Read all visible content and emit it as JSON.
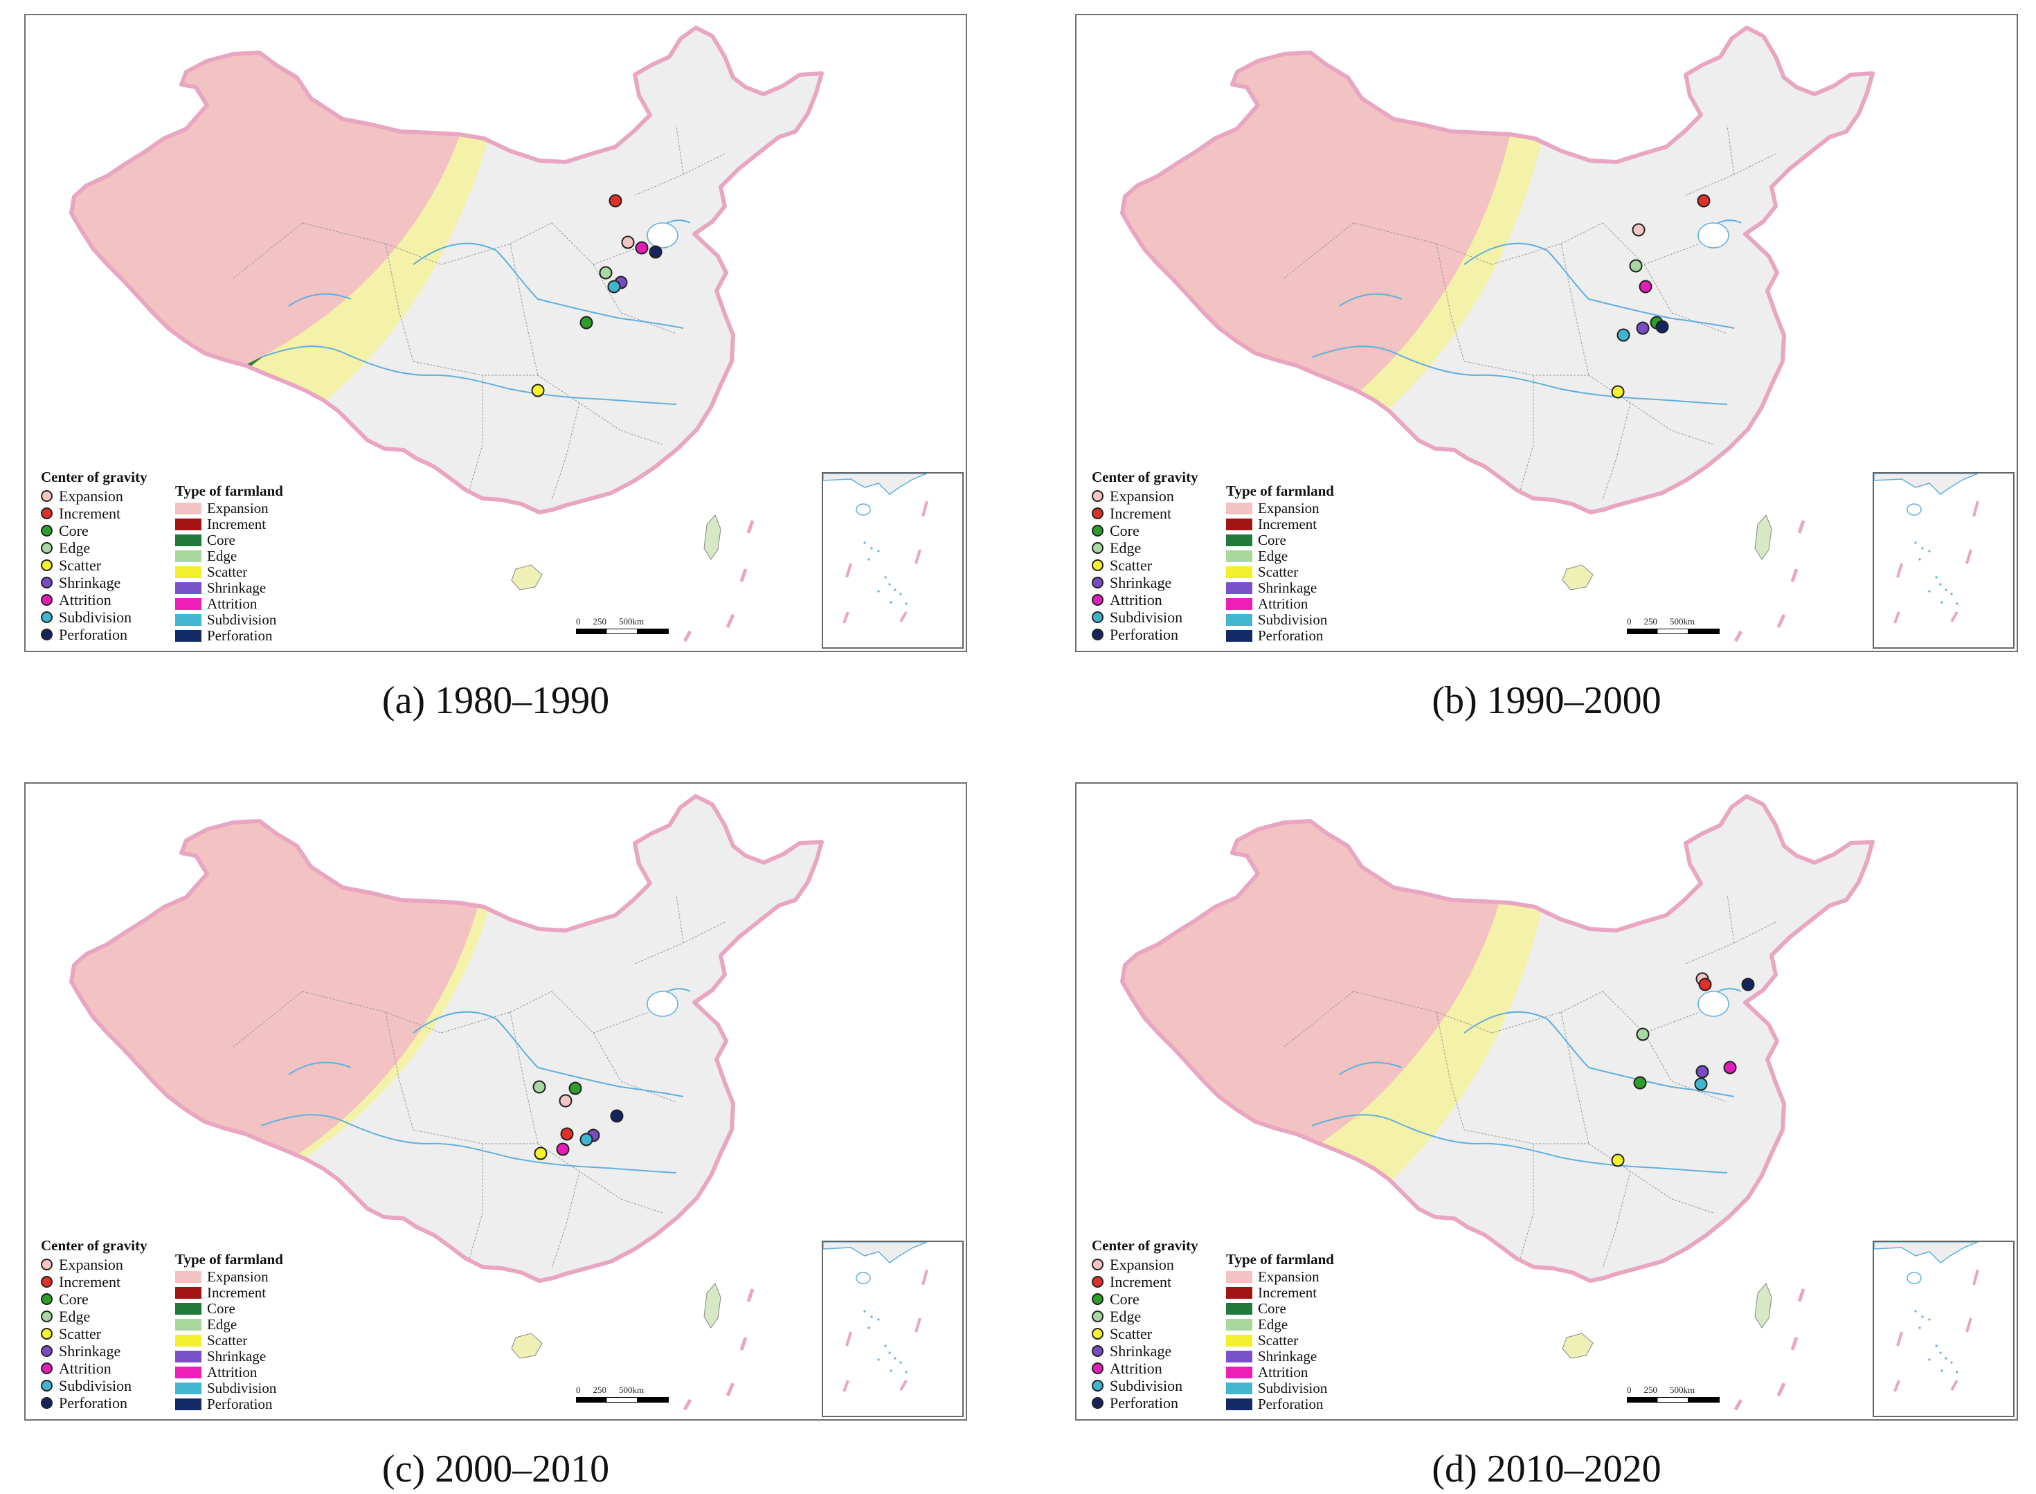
{
  "legend_gravity": {
    "title": "Center of gravity",
    "items": [
      {
        "label": "Expansion",
        "color": "#f6c5c5"
      },
      {
        "label": "Increment",
        "color": "#e0302a"
      },
      {
        "label": "Core",
        "color": "#2e9e2a"
      },
      {
        "label": "Edge",
        "color": "#a8d9a3"
      },
      {
        "label": "Scatter",
        "color": "#f6f22e"
      },
      {
        "label": "Shrinkage",
        "color": "#7a4cc4"
      },
      {
        "label": "Attrition",
        "color": "#e61cb9"
      },
      {
        "label": "Subdivision",
        "color": "#3fb6cf"
      },
      {
        "label": "Perforation",
        "color": "#14245e"
      }
    ]
  },
  "legend_farmland": {
    "title": "Type of farmland",
    "items": [
      {
        "label": "Expansion",
        "color": "#f3c2c2"
      },
      {
        "label": "Increment",
        "color": "#a31515"
      },
      {
        "label": "Core",
        "color": "#1f7a3c"
      },
      {
        "label": "Edge",
        "color": "#a9d89c"
      },
      {
        "label": "Scatter",
        "color": "#f2f02c"
      },
      {
        "label": "Shrinkage",
        "color": "#7a52c8"
      },
      {
        "label": "Attrition",
        "color": "#ee1fb8"
      },
      {
        "label": "Subdivision",
        "color": "#43b6d0"
      },
      {
        "label": "Perforation",
        "color": "#142a66"
      }
    ]
  },
  "scale": {
    "labels": [
      "0",
      "250",
      "500km"
    ]
  },
  "panels": [
    {
      "caption": "(a) 1980–1990"
    },
    {
      "caption": "(b) 1990–2000"
    },
    {
      "caption": "(c) 2000–2010"
    },
    {
      "caption": "(d) 2010–2020"
    }
  ]
}
